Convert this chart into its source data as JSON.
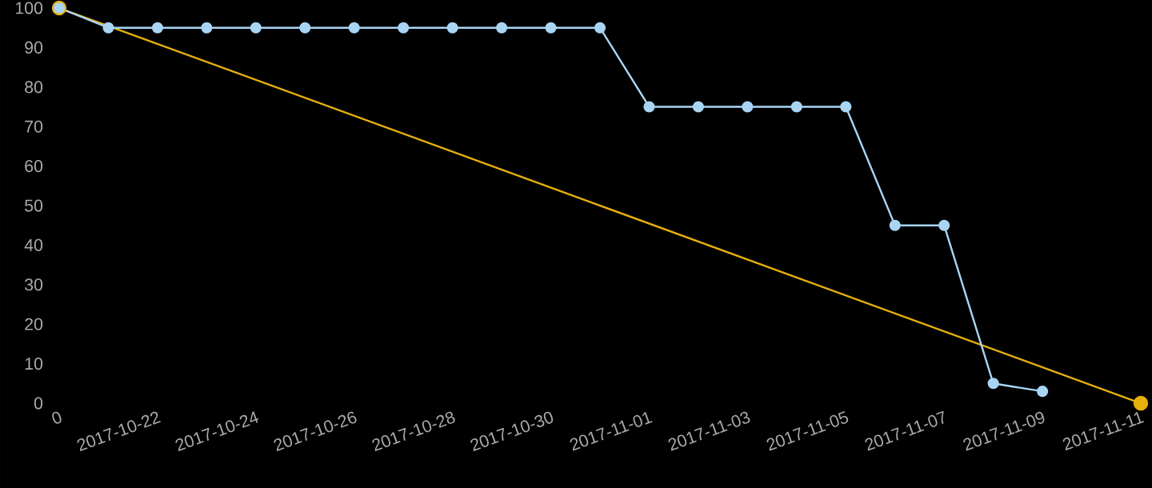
{
  "chart_data": {
    "type": "line",
    "x": [
      "2017-10-20",
      "2017-10-21",
      "2017-10-22",
      "2017-10-23",
      "2017-10-24",
      "2017-10-25",
      "2017-10-26",
      "2017-10-27",
      "2017-10-28",
      "2017-10-29",
      "2017-10-30",
      "2017-10-31",
      "2017-11-01",
      "2017-11-02",
      "2017-11-03",
      "2017-11-04",
      "2017-11-05",
      "2017-11-06",
      "2017-11-07",
      "2017-11-08",
      "2017-11-09"
    ],
    "series": [
      {
        "color": "#a9d5f5",
        "values": [
          100,
          95,
          95,
          95,
          95,
          95,
          95,
          95,
          95,
          95,
          95,
          95,
          75,
          75,
          75,
          75,
          75,
          45,
          45,
          5,
          3
        ]
      },
      {
        "type": "line",
        "color": "#e6b00c",
        "x": [
          "2017-10-20",
          "2017-11-11"
        ],
        "values": [
          100,
          0
        ]
      }
    ],
    "marker": "circle",
    "line_style": "solid",
    "xlim": [
      "2017-10-20",
      "2017-11-11"
    ],
    "xticks": [
      {
        "value": "2017-10-20",
        "label": "0"
      },
      "2017-10-22",
      "2017-10-24",
      "2017-10-26",
      "2017-10-28",
      "2017-10-30",
      "2017-11-01",
      "2017-11-03",
      "2017-11-05",
      "2017-11-07",
      "2017-11-09",
      "2017-11-11"
    ],
    "ylim": [
      0,
      100
    ],
    "yticks": [
      0,
      10,
      20,
      30,
      40,
      50,
      60,
      70,
      80,
      90,
      100
    ]
  }
}
